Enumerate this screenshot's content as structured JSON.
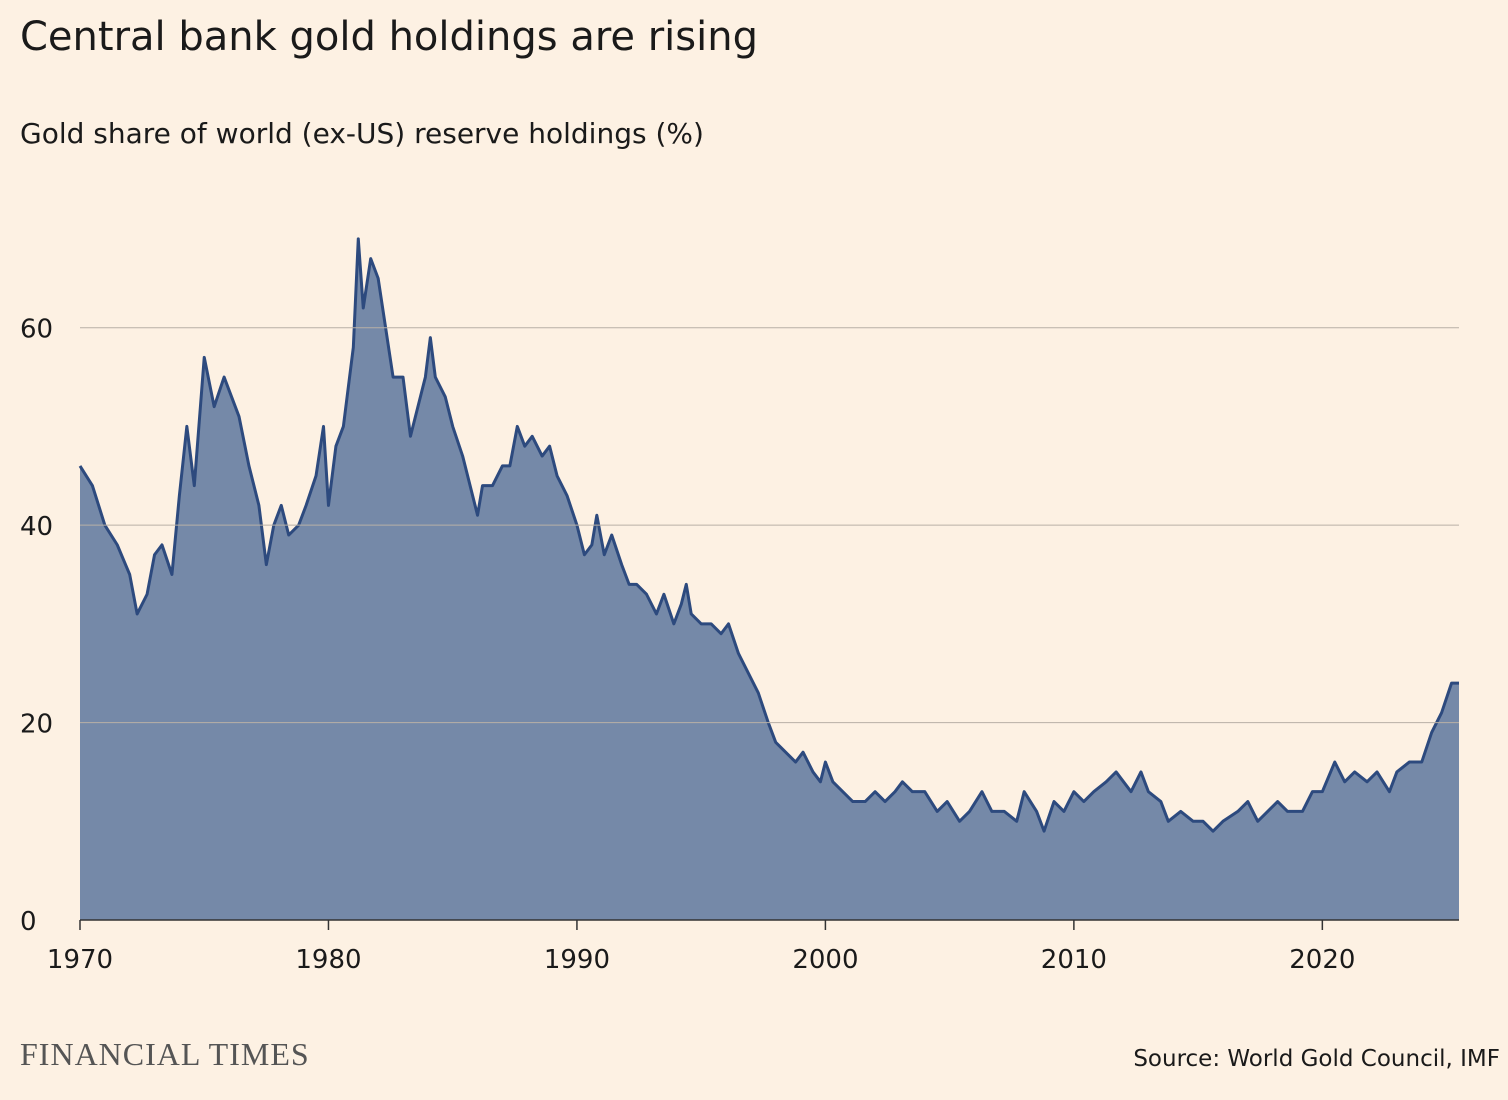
{
  "chart_data": {
    "type": "area",
    "title": "Central bank gold holdings are rising",
    "subtitle": "Gold share of world (ex-US) reserve holdings (%)",
    "source": "Source: World Gold Council, IMF",
    "brand": "FINANCIAL TIMES",
    "fill_color": "#7589a8",
    "line_color": "#2d4a7e",
    "grid": true,
    "xlim": [
      1970,
      2025.5
    ],
    "xticks": [
      1970,
      1980,
      1990,
      2000,
      2010,
      2020
    ],
    "ylim": [
      0,
      70
    ],
    "yticks": [
      0,
      20,
      40,
      60
    ],
    "x": [
      1970.0,
      1970.5,
      1971.0,
      1971.5,
      1972.0,
      1972.3,
      1972.7,
      1973.0,
      1973.3,
      1973.7,
      1974.0,
      1974.3,
      1974.6,
      1975.0,
      1975.4,
      1975.8,
      1976.1,
      1976.4,
      1976.8,
      1977.2,
      1977.5,
      1977.8,
      1978.1,
      1978.4,
      1978.8,
      1979.1,
      1979.5,
      1979.8,
      1980.0,
      1980.3,
      1980.6,
      1981.0,
      1981.2,
      1981.4,
      1981.7,
      1982.0,
      1982.3,
      1982.6,
      1983.0,
      1983.3,
      1983.6,
      1983.9,
      1984.1,
      1984.3,
      1984.7,
      1985.0,
      1985.4,
      1985.7,
      1986.0,
      1986.2,
      1986.6,
      1987.0,
      1987.3,
      1987.6,
      1987.9,
      1988.2,
      1988.6,
      1988.9,
      1989.2,
      1989.6,
      1990.0,
      1990.3,
      1990.6,
      1990.8,
      1991.1,
      1991.4,
      1991.8,
      1992.1,
      1992.4,
      1992.8,
      1993.2,
      1993.5,
      1993.9,
      1994.2,
      1994.4,
      1994.6,
      1995.0,
      1995.4,
      1995.8,
      1996.1,
      1996.5,
      1996.9,
      1997.3,
      1997.7,
      1998.0,
      1998.4,
      1998.8,
      1999.1,
      1999.5,
      1999.8,
      2000.0,
      2000.3,
      2000.7,
      2001.1,
      2001.6,
      2002.0,
      2002.4,
      2002.8,
      2003.1,
      2003.5,
      2004.0,
      2004.5,
      2004.9,
      2005.4,
      2005.8,
      2006.3,
      2006.7,
      2007.2,
      2007.7,
      2008.0,
      2008.5,
      2008.8,
      2009.2,
      2009.6,
      2010.0,
      2010.4,
      2010.8,
      2011.3,
      2011.7,
      2012.0,
      2012.3,
      2012.7,
      2013.0,
      2013.5,
      2013.8,
      2014.3,
      2014.8,
      2015.2,
      2015.6,
      2016.0,
      2016.6,
      2017.0,
      2017.4,
      2017.8,
      2018.2,
      2018.6,
      2019.2,
      2019.6,
      2020.0,
      2020.5,
      2020.9,
      2021.3,
      2021.8,
      2022.2,
      2022.7,
      2023.0,
      2023.5,
      2024.0,
      2024.4,
      2024.8,
      2025.2,
      2025.5
    ],
    "values": [
      46,
      44,
      40,
      38,
      35,
      31,
      33,
      37,
      38,
      35,
      43,
      50,
      44,
      57,
      52,
      55,
      53,
      51,
      46,
      42,
      36,
      40,
      42,
      39,
      40,
      42,
      45,
      50,
      42,
      48,
      50,
      58,
      69,
      62,
      67,
      65,
      60,
      55,
      55,
      49,
      52,
      55,
      59,
      55,
      53,
      50,
      47,
      44,
      41,
      44,
      44,
      46,
      46,
      50,
      48,
      49,
      47,
      48,
      45,
      43,
      40,
      37,
      38,
      41,
      37,
      39,
      36,
      34,
      34,
      33,
      31,
      33,
      30,
      32,
      34,
      31,
      30,
      30,
      29,
      30,
      27,
      25,
      23,
      20,
      18,
      17,
      16,
      17,
      15,
      14,
      16,
      14,
      13,
      12,
      12,
      13,
      12,
      13,
      14,
      13,
      13,
      11,
      12,
      10,
      11,
      13,
      11,
      11,
      10,
      13,
      11,
      9,
      12,
      11,
      13,
      12,
      13,
      14,
      15,
      14,
      13,
      15,
      13,
      12,
      10,
      11,
      10,
      10,
      9,
      10,
      11,
      12,
      10,
      11,
      12,
      11,
      11,
      13,
      13,
      16,
      14,
      15,
      14,
      15,
      13,
      15,
      16,
      16,
      19,
      21,
      24,
      24
    ]
  }
}
